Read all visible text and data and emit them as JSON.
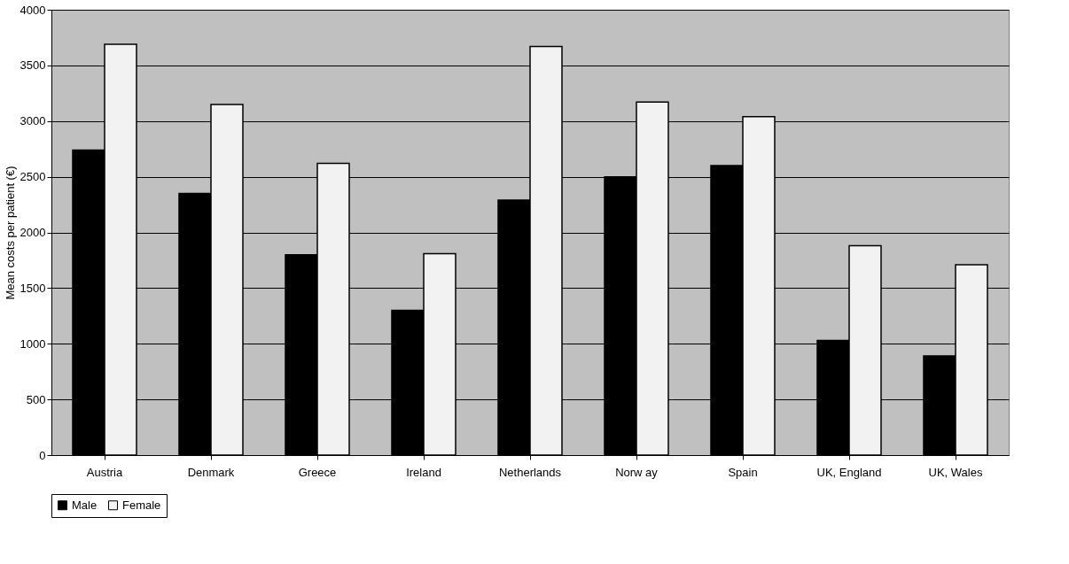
{
  "chart_data": {
    "type": "bar",
    "ylabel": "Mean costs per patient (€)",
    "categories": [
      "Austria",
      "Denmark",
      "Greece",
      "Ireland",
      "Netherlands",
      "Norw ay",
      "Spain",
      "UK, England",
      "UK, Wales"
    ],
    "series": [
      {
        "name": "Male",
        "color": "#000000",
        "values": [
          2740,
          2350,
          1800,
          1300,
          2290,
          2500,
          2600,
          1030,
          890
        ]
      },
      {
        "name": "Female",
        "color": "#f2f2f2",
        "values": [
          3690,
          3150,
          2620,
          1810,
          3670,
          3170,
          3040,
          1880,
          1710
        ]
      }
    ],
    "ylim": [
      0,
      4000
    ],
    "yticks": [
      0,
      500,
      1000,
      1500,
      2000,
      2500,
      3000,
      3500,
      4000
    ],
    "grid": "y",
    "legend": "bottom"
  }
}
